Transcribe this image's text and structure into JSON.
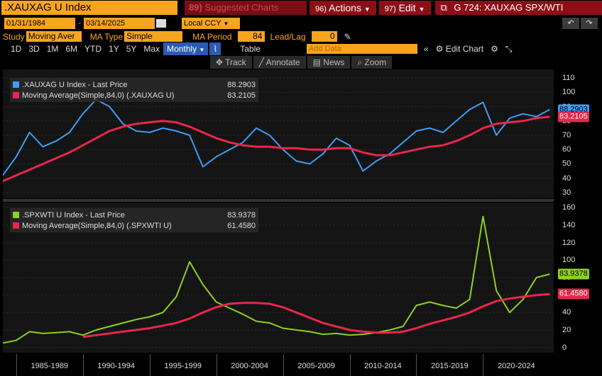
{
  "header": {
    "security": ".XAUXAG U Index",
    "suggested": "Suggested Charts",
    "actions": "Actions",
    "actions_key": "96)",
    "edit": "Edit",
    "edit_key": "97)",
    "chart_title": "G 724: XAUXAG SPX/WTI"
  },
  "dates": {
    "start": "01/31/1984",
    "end": "03/14/2025",
    "currency": "Local CCY"
  },
  "study": {
    "study_label": "Study",
    "study_value": "Moving Aver",
    "ma_type_label": "MA Type",
    "ma_type_value": "Simple",
    "ma_period_label": "MA Period",
    "ma_period_value": "84",
    "leadlag_label": "Lead/Lag",
    "leadlag_value": "0"
  },
  "timebar": {
    "ranges": [
      "1D",
      "3D",
      "1M",
      "6M",
      "YTD",
      "1Y",
      "5Y",
      "Max"
    ],
    "frequency": "Monthly",
    "table": "Table",
    "add_data_placeholder": "Add Data",
    "edit_chart": "Edit Chart"
  },
  "tools": [
    "Track",
    "Annotate",
    "News",
    "Zoom"
  ],
  "colors": {
    "accent": "#f7a51c",
    "blue_series": "#3d9df5",
    "green_series": "#8ed11e",
    "ma_red": "#e8264a"
  },
  "chart_data": [
    {
      "type": "line",
      "series": [
        {
          "name": ".XAUXAG U Index - Last Price",
          "last": "88.2903",
          "x": [
            1984,
            1985,
            1986,
            1987,
            1988,
            1989,
            1990,
            1991,
            1992,
            1993,
            1994,
            1995,
            1996,
            1997,
            1998,
            1999,
            2000,
            2001,
            2002,
            2003,
            2004,
            2005,
            2006,
            2007,
            2008,
            2009,
            2010,
            2011,
            2012,
            2013,
            2014,
            2015,
            2016,
            2017,
            2018,
            2019,
            2020,
            2021,
            2022,
            2023,
            2024,
            2025
          ],
          "values": [
            42,
            55,
            72,
            62,
            66,
            72,
            85,
            95,
            90,
            78,
            73,
            72,
            75,
            73,
            70,
            48,
            55,
            60,
            65,
            75,
            70,
            60,
            52,
            50,
            57,
            68,
            63,
            45,
            52,
            57,
            65,
            73,
            75,
            72,
            80,
            88,
            93,
            70,
            82,
            85,
            83,
            88
          ]
        },
        {
          "name": "Moving Average(Simple,84,0) (.XAUXAG U)",
          "last": "83.2105",
          "x": [
            1984,
            1985,
            1986,
            1987,
            1988,
            1989,
            1990,
            1991,
            1992,
            1993,
            1994,
            1995,
            1996,
            1997,
            1998,
            1999,
            2000,
            2001,
            2002,
            2003,
            2004,
            2005,
            2006,
            2007,
            2008,
            2009,
            2010,
            2011,
            2012,
            2013,
            2014,
            2015,
            2016,
            2017,
            2018,
            2019,
            2020,
            2021,
            2022,
            2023,
            2024,
            2025
          ],
          "values": [
            38,
            42,
            46,
            50,
            54,
            58,
            63,
            68,
            73,
            76,
            78,
            79,
            80,
            79,
            76,
            72,
            68,
            65,
            63,
            62,
            62,
            61,
            61,
            60,
            60,
            61,
            61,
            58,
            56,
            56,
            58,
            60,
            62,
            63,
            66,
            70,
            75,
            78,
            79,
            80,
            82,
            83
          ]
        }
      ],
      "yticks": [
        30,
        40,
        50,
        60,
        70,
        80,
        90,
        100,
        110
      ],
      "ylim": [
        26,
        116
      ]
    },
    {
      "type": "line",
      "series": [
        {
          "name": ".SPXWTI U Index - Last Price",
          "last": "83.9378",
          "x": [
            1984,
            1985,
            1986,
            1987,
            1988,
            1989,
            1990,
            1991,
            1992,
            1993,
            1994,
            1995,
            1996,
            1997,
            1998,
            1999,
            2000,
            2001,
            2002,
            2003,
            2004,
            2005,
            2006,
            2007,
            2008,
            2009,
            2010,
            2011,
            2012,
            2013,
            2014,
            2015,
            2016,
            2017,
            2018,
            2019,
            2020,
            2021,
            2022,
            2023,
            2024,
            2025
          ],
          "values": [
            5,
            8,
            18,
            16,
            17,
            18,
            14,
            20,
            24,
            28,
            32,
            35,
            40,
            58,
            98,
            72,
            52,
            45,
            38,
            30,
            28,
            22,
            20,
            18,
            15,
            16,
            14,
            15,
            17,
            20,
            24,
            48,
            52,
            48,
            45,
            55,
            150,
            65,
            40,
            55,
            80,
            84
          ]
        },
        {
          "name": "Moving Average(Simple,84,0) (.SPXWTI U)",
          "last": "61.4580",
          "x": [
            1990,
            1991,
            1992,
            1993,
            1994,
            1995,
            1996,
            1997,
            1998,
            1999,
            2000,
            2001,
            2002,
            2003,
            2004,
            2005,
            2006,
            2007,
            2008,
            2009,
            2010,
            2011,
            2012,
            2013,
            2014,
            2015,
            2016,
            2017,
            2018,
            2019,
            2020,
            2021,
            2022,
            2023,
            2024,
            2025
          ],
          "values": [
            12,
            14,
            16,
            18,
            20,
            22,
            25,
            28,
            33,
            40,
            46,
            50,
            51,
            51,
            50,
            46,
            40,
            34,
            28,
            24,
            20,
            18,
            17,
            17,
            18,
            22,
            27,
            31,
            35,
            40,
            47,
            53,
            56,
            58,
            60,
            61
          ]
        }
      ],
      "yticks": [
        0,
        20,
        40,
        60,
        80,
        100,
        120,
        140,
        160
      ],
      "ylim": [
        -6,
        166
      ]
    }
  ],
  "x_axis": {
    "labels": [
      "1985-1989",
      "1990-1994",
      "1995-1999",
      "2000-2004",
      "2005-2009",
      "2010-2014",
      "2015-2019",
      "2020-2024"
    ],
    "start": 1984,
    "end": 2025.3
  }
}
